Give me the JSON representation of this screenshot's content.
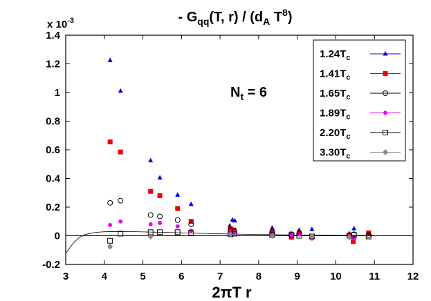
{
  "chart_data": {
    "type": "scatter",
    "title": "- G_qq(T, r) / (d_A T^8)",
    "title_parts": {
      "minus": "- G",
      "sub": "qq",
      "mid": "(T, r) / (d",
      "sub2": "A",
      "mid2": " T",
      "sup": "8",
      "end": ")"
    },
    "xlabel": "2πT r",
    "ylabel": "",
    "y_multiplier": {
      "base": "x 10",
      "exp": "-3"
    },
    "annotation": {
      "main": "N",
      "sub": "t",
      "rest": " = 6"
    },
    "xlim": [
      3,
      12
    ],
    "ylim": [
      -0.2,
      1.4
    ],
    "xticks": [
      3,
      4,
      5,
      6,
      7,
      8,
      9,
      10,
      11,
      12
    ],
    "yticks": [
      -0.2,
      0,
      0.2,
      0.4,
      0.6,
      0.8,
      1,
      1.2,
      1.4
    ],
    "ytick_labels": [
      "-0.2",
      "0",
      "0.2",
      "0.4",
      "0.6",
      "0.8",
      "1",
      "1.2",
      "1.4"
    ],
    "legend_position": "top-right",
    "zero_line": true,
    "series": [
      {
        "name": "1.24T_c",
        "name_main": "1.24T",
        "name_sub": "c",
        "marker": "triangle",
        "color": "#0000dd",
        "x": [
          4.15,
          4.42,
          5.2,
          5.44,
          5.9,
          6.25,
          7.25,
          7.32,
          7.38,
          8.35,
          8.83,
          9.05,
          9.38,
          10.35,
          10.47,
          10.85
        ],
        "y": [
          1.225,
          1.01,
          0.525,
          0.405,
          0.285,
          0.22,
          0.07,
          0.11,
          0.105,
          0.055,
          0.015,
          0.04,
          0.045,
          0.015,
          0.05,
          0.02
        ]
      },
      {
        "name": "1.41T_c",
        "name_main": "1.41T",
        "name_sub": "c",
        "marker": "square-filled",
        "color": "#ee0000",
        "x": [
          4.15,
          4.42,
          5.2,
          5.44,
          5.9,
          6.25,
          7.27,
          7.35,
          8.35,
          8.85,
          9.05,
          10.35,
          10.45,
          10.85
        ],
        "y": [
          0.655,
          0.585,
          0.31,
          0.28,
          0.19,
          0.1,
          0.05,
          0.04,
          0.03,
          -0.01,
          0.02,
          0.0,
          -0.04,
          0.02
        ]
      },
      {
        "name": "1.65T_c",
        "name_main": "1.65T",
        "name_sub": "c",
        "marker": "circle-open",
        "color": "#000000",
        "x": [
          4.15,
          4.42,
          5.2,
          5.44,
          5.9,
          6.25,
          7.27,
          7.37,
          8.35,
          8.85,
          9.05,
          10.35,
          10.47,
          10.85
        ],
        "y": [
          0.23,
          0.245,
          0.145,
          0.135,
          0.11,
          0.08,
          0.04,
          0.035,
          0.025,
          0.01,
          0.015,
          0.005,
          0.01,
          0.005
        ]
      },
      {
        "name": "1.89T_c",
        "name_main": "1.89T",
        "name_sub": "c",
        "marker": "circle-filled",
        "color": "#ee00ee",
        "x": [
          4.15,
          4.42,
          5.2,
          5.44,
          5.9,
          6.25,
          7.27,
          7.37,
          8.35,
          8.85,
          9.05,
          9.38,
          10.35,
          10.47
        ],
        "y": [
          0.075,
          0.1,
          0.08,
          0.09,
          0.065,
          0.035,
          0.025,
          0.02,
          0.01,
          0.005,
          0.01,
          -0.02,
          -0.005,
          -0.02
        ]
      },
      {
        "name": "2.20T_c",
        "name_main": "2.20T",
        "name_sub": "c",
        "marker": "square-open",
        "color": "#000000",
        "x": [
          4.15,
          4.42,
          5.2,
          5.44,
          5.9,
          6.25,
          7.27,
          7.37,
          8.35,
          8.85,
          9.05,
          9.38,
          10.35,
          10.47,
          10.85
        ],
        "y": [
          -0.035,
          0.015,
          0.025,
          0.025,
          0.025,
          0.02,
          0.01,
          0.015,
          0.005,
          0.005,
          0.0,
          -0.005,
          0.0,
          0.005,
          -0.005
        ]
      },
      {
        "name": "3.30T_c",
        "name_main": "3.30T",
        "name_sub": "c",
        "marker": "diamond",
        "color": "#888888",
        "x": [
          4.15,
          5.2,
          7.27,
          8.35,
          9.38,
          10.35
        ],
        "y": [
          -0.075,
          -0.005,
          0.01,
          0.0,
          -0.005,
          -0.01
        ]
      }
    ],
    "curve": {
      "x": [
        3.0,
        3.1,
        3.2,
        3.35,
        3.5,
        3.65,
        3.8,
        4.0,
        4.3,
        4.7,
        5.2,
        5.8,
        6.5,
        7.3,
        8.2,
        9.2,
        10.2,
        11.0
      ],
      "y": [
        -0.125,
        -0.085,
        -0.05,
        -0.012,
        0.008,
        0.018,
        0.024,
        0.028,
        0.03,
        0.029,
        0.026,
        0.022,
        0.017,
        0.012,
        0.008,
        0.005,
        0.003,
        0.002
      ]
    }
  }
}
